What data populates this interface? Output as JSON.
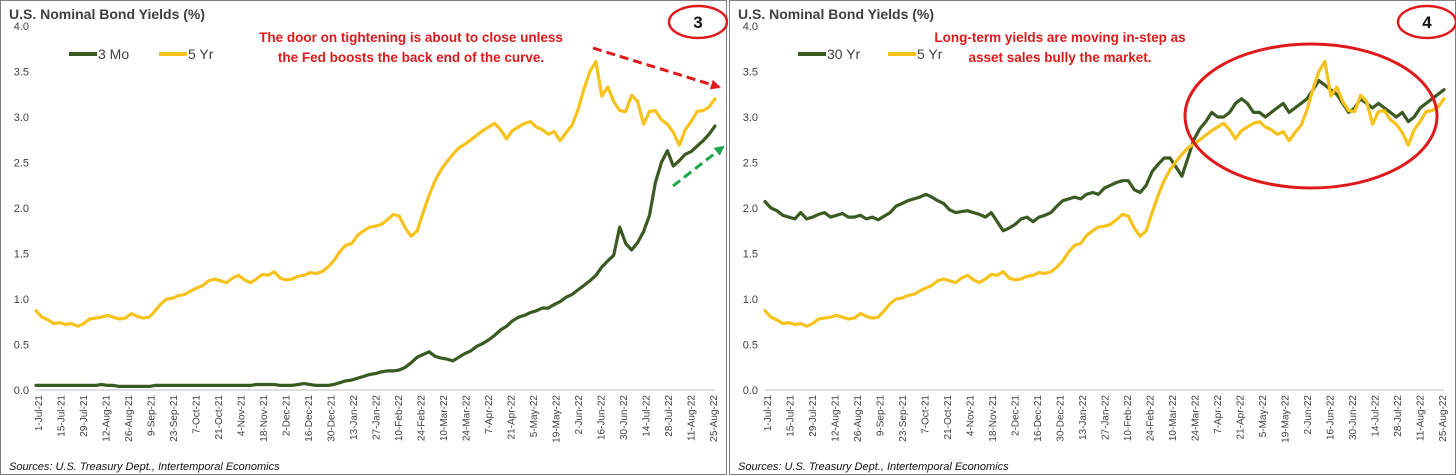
{
  "chart_data": [
    {
      "type": "line",
      "title": "U.S. Nominal Bond Yields (%)",
      "badge": "3",
      "annotation": [
        "The door on tightening is about to close unless",
        "the Fed boosts the back end of the curve."
      ],
      "source": "Sources: U.S. Treasury Dept., Intertemporal Economics",
      "ylim": [
        0,
        4.0
      ],
      "yticks": [
        "0.0",
        "0.5",
        "1.0",
        "1.5",
        "2.0",
        "2.5",
        "3.0",
        "3.5",
        "4.0"
      ],
      "xtick_labels": [
        "1-Jul-21",
        "15-Jul-21",
        "29-Jul-21",
        "12-Aug-21",
        "26-Aug-21",
        "9-Sep-21",
        "23-Sep-21",
        "7-Oct-21",
        "21-Oct-21",
        "4-Nov-21",
        "18-Nov-21",
        "2-Dec-21",
        "16-Dec-21",
        "30-Dec-21",
        "13-Jan-22",
        "27-Jan-22",
        "10-Feb-22",
        "24-Feb-22",
        "10-Mar-22",
        "24-Mar-22",
        "7-Apr-22",
        "21-Apr-22",
        "5-May-22",
        "19-May-22",
        "2-Jun-22",
        "16-Jun-22",
        "30-Jun-22",
        "14-Jul-22",
        "28-Jul-22",
        "11-Aug-22",
        "25-Aug-22"
      ],
      "grid": false,
      "legend_position": "top-left",
      "series": [
        {
          "name": "3 Mo",
          "color": "#3a5a22",
          "values": [
            0.05,
            0.05,
            0.05,
            0.05,
            0.05,
            0.05,
            0.05,
            0.05,
            0.05,
            0.05,
            0.05,
            0.06,
            0.05,
            0.05,
            0.04,
            0.04,
            0.04,
            0.04,
            0.04,
            0.04,
            0.05,
            0.05,
            0.05,
            0.05,
            0.05,
            0.05,
            0.05,
            0.05,
            0.05,
            0.05,
            0.05,
            0.05,
            0.05,
            0.05,
            0.05,
            0.05,
            0.05,
            0.06,
            0.06,
            0.06,
            0.06,
            0.05,
            0.05,
            0.05,
            0.06,
            0.07,
            0.06,
            0.05,
            0.05,
            0.05,
            0.06,
            0.08,
            0.1,
            0.11,
            0.13,
            0.15,
            0.17,
            0.18,
            0.2,
            0.21,
            0.21,
            0.22,
            0.25,
            0.3,
            0.36,
            0.39,
            0.42,
            0.37,
            0.35,
            0.34,
            0.32,
            0.36,
            0.4,
            0.43,
            0.48,
            0.51,
            0.55,
            0.6,
            0.66,
            0.7,
            0.76,
            0.8,
            0.82,
            0.85,
            0.87,
            0.9,
            0.9,
            0.94,
            0.97,
            1.02,
            1.05,
            1.1,
            1.15,
            1.2,
            1.26,
            1.35,
            1.42,
            1.48,
            1.79,
            1.61,
            1.54,
            1.62,
            1.74,
            1.92,
            2.28,
            2.5,
            2.63,
            2.46,
            2.52,
            2.59,
            2.62,
            2.68,
            2.74,
            2.81,
            2.9
          ]
        },
        {
          "name": "5 Yr",
          "color": "#f6c21b",
          "values": [
            0.87,
            0.8,
            0.77,
            0.73,
            0.74,
            0.72,
            0.73,
            0.7,
            0.73,
            0.78,
            0.79,
            0.8,
            0.82,
            0.8,
            0.78,
            0.79,
            0.84,
            0.81,
            0.79,
            0.8,
            0.87,
            0.95,
            1.0,
            1.01,
            1.04,
            1.05,
            1.09,
            1.12,
            1.15,
            1.2,
            1.22,
            1.2,
            1.18,
            1.23,
            1.26,
            1.21,
            1.18,
            1.22,
            1.27,
            1.26,
            1.3,
            1.23,
            1.21,
            1.22,
            1.25,
            1.26,
            1.29,
            1.28,
            1.3,
            1.35,
            1.42,
            1.52,
            1.59,
            1.61,
            1.7,
            1.75,
            1.79,
            1.8,
            1.82,
            1.87,
            1.93,
            1.91,
            1.78,
            1.69,
            1.75,
            1.95,
            2.14,
            2.3,
            2.42,
            2.51,
            2.59,
            2.66,
            2.7,
            2.75,
            2.8,
            2.85,
            2.89,
            2.93,
            2.86,
            2.76,
            2.85,
            2.89,
            2.93,
            2.95,
            2.89,
            2.86,
            2.81,
            2.84,
            2.74,
            2.83,
            2.91,
            3.08,
            3.31,
            3.5,
            3.61,
            3.23,
            3.33,
            3.17,
            3.07,
            3.06,
            3.24,
            3.17,
            2.92,
            3.06,
            3.07,
            2.97,
            2.92,
            2.83,
            2.69,
            2.86,
            2.95,
            3.06,
            3.07,
            3.11,
            3.2
          ]
        }
      ]
    },
    {
      "type": "line",
      "title": "U.S. Nominal Bond Yields (%)",
      "badge": "4",
      "annotation": [
        "Long-term yields are moving in-step as",
        "asset sales bully the market."
      ],
      "source": "Sources: U.S. Treasury Dept., Intertemporal Economics",
      "ylim": [
        0,
        4.0
      ],
      "yticks": [
        "0.0",
        "0.5",
        "1.0",
        "1.5",
        "2.0",
        "2.5",
        "3.0",
        "3.5",
        "4.0"
      ],
      "xtick_labels": [
        "1-Jul-21",
        "15-Jul-21",
        "29-Jul-21",
        "12-Aug-21",
        "26-Aug-21",
        "9-Sep-21",
        "23-Sep-21",
        "7-Oct-21",
        "21-Oct-21",
        "4-Nov-21",
        "18-Nov-21",
        "2-Dec-21",
        "16-Dec-21",
        "30-Dec-21",
        "13-Jan-22",
        "27-Jan-22",
        "10-Feb-22",
        "24-Feb-22",
        "10-Mar-22",
        "24-Mar-22",
        "7-Apr-22",
        "21-Apr-22",
        "5-May-22",
        "19-May-22",
        "2-Jun-22",
        "16-Jun-22",
        "30-Jun-22",
        "14-Jul-22",
        "28-Jul-22",
        "11-Aug-22",
        "25-Aug-22"
      ],
      "grid": false,
      "legend_position": "top-left",
      "series": [
        {
          "name": "30 Yr",
          "color": "#3a5a22",
          "values": [
            2.07,
            2.0,
            1.97,
            1.92,
            1.9,
            1.88,
            1.95,
            1.88,
            1.9,
            1.93,
            1.95,
            1.9,
            1.92,
            1.94,
            1.9,
            1.9,
            1.92,
            1.88,
            1.9,
            1.87,
            1.91,
            1.95,
            2.02,
            2.05,
            2.08,
            2.1,
            2.12,
            2.15,
            2.12,
            2.08,
            2.05,
            1.98,
            1.95,
            1.96,
            1.97,
            1.95,
            1.93,
            1.9,
            1.95,
            1.85,
            1.75,
            1.78,
            1.82,
            1.88,
            1.9,
            1.85,
            1.9,
            1.92,
            1.95,
            2.02,
            2.08,
            2.1,
            2.12,
            2.1,
            2.15,
            2.17,
            2.15,
            2.22,
            2.25,
            2.28,
            2.3,
            2.3,
            2.2,
            2.17,
            2.25,
            2.4,
            2.48,
            2.55,
            2.55,
            2.45,
            2.35,
            2.55,
            2.75,
            2.87,
            2.95,
            3.05,
            3.0,
            3.0,
            3.05,
            3.15,
            3.2,
            3.15,
            3.05,
            3.05,
            3.0,
            3.05,
            3.1,
            3.15,
            3.05,
            3.1,
            3.15,
            3.2,
            3.3,
            3.4,
            3.35,
            3.3,
            3.25,
            3.15,
            3.05,
            3.1,
            3.2,
            3.15,
            3.1,
            3.15,
            3.1,
            3.05,
            3.0,
            3.05,
            2.95,
            3.0,
            3.1,
            3.15,
            3.2,
            3.25,
            3.3
          ]
        },
        {
          "name": "5 Yr",
          "color": "#f6c21b",
          "values": [
            0.87,
            0.8,
            0.77,
            0.73,
            0.74,
            0.72,
            0.73,
            0.7,
            0.73,
            0.78,
            0.79,
            0.8,
            0.82,
            0.8,
            0.78,
            0.79,
            0.84,
            0.81,
            0.79,
            0.8,
            0.87,
            0.95,
            1.0,
            1.01,
            1.04,
            1.05,
            1.09,
            1.12,
            1.15,
            1.2,
            1.22,
            1.2,
            1.18,
            1.23,
            1.26,
            1.21,
            1.18,
            1.22,
            1.27,
            1.26,
            1.3,
            1.23,
            1.21,
            1.22,
            1.25,
            1.26,
            1.29,
            1.28,
            1.3,
            1.35,
            1.42,
            1.52,
            1.59,
            1.61,
            1.7,
            1.75,
            1.79,
            1.8,
            1.82,
            1.87,
            1.93,
            1.91,
            1.78,
            1.69,
            1.75,
            1.95,
            2.14,
            2.3,
            2.42,
            2.51,
            2.59,
            2.66,
            2.7,
            2.75,
            2.8,
            2.85,
            2.89,
            2.93,
            2.86,
            2.76,
            2.85,
            2.89,
            2.93,
            2.95,
            2.89,
            2.86,
            2.81,
            2.84,
            2.74,
            2.83,
            2.91,
            3.08,
            3.31,
            3.5,
            3.61,
            3.23,
            3.33,
            3.17,
            3.07,
            3.06,
            3.24,
            3.17,
            2.92,
            3.06,
            3.07,
            2.97,
            2.92,
            2.83,
            2.69,
            2.86,
            2.95,
            3.06,
            3.07,
            3.11,
            3.2
          ]
        }
      ]
    }
  ],
  "annotation_colors": {
    "text": "#e0191b",
    "red_arrow": "#e0191b",
    "green_arrow": "#1ea64a",
    "ellipse": "#e0191b"
  }
}
